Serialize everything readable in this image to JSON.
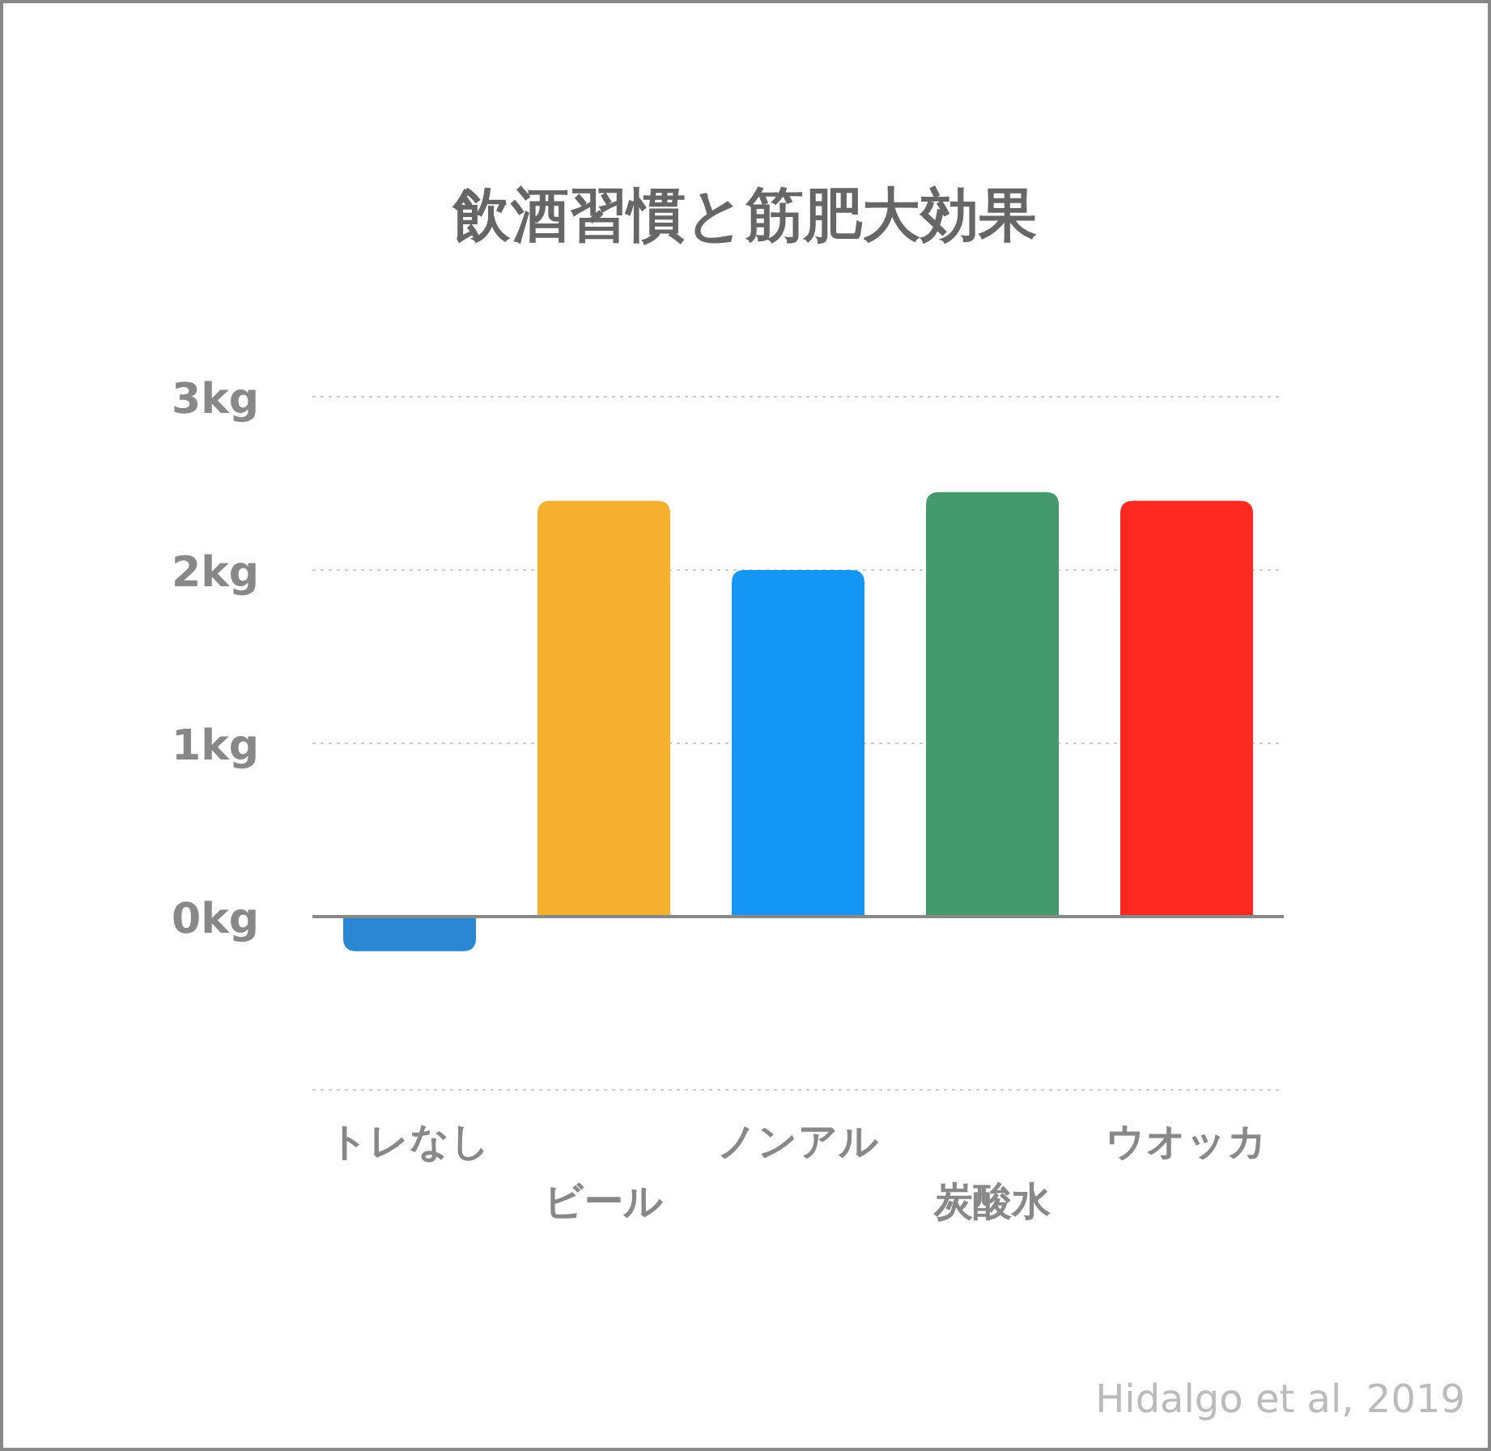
{
  "chart_data": {
    "type": "bar",
    "title": "飲酒習慣と筋肥大効果",
    "categories": [
      "トレなし",
      "ビール",
      "ノンアル",
      "炭酸水",
      "ウオッカ"
    ],
    "values": [
      -0.2,
      2.4,
      2.0,
      2.45,
      2.4
    ],
    "colors": [
      "#2b87d1",
      "#f5b12e",
      "#1496f5",
      "#44996d",
      "#ff2a1f"
    ],
    "ylim": [
      -1,
      3
    ],
    "yticks": [
      {
        "value": -1,
        "label": null
      },
      {
        "value": 0,
        "label": "0kg"
      },
      {
        "value": 1,
        "label": "1kg"
      },
      {
        "value": 2,
        "label": "2kg"
      },
      {
        "value": 3,
        "label": "3kg"
      }
    ],
    "grid": "y",
    "annotations": [
      "Hidalgo et al, 2019"
    ]
  }
}
